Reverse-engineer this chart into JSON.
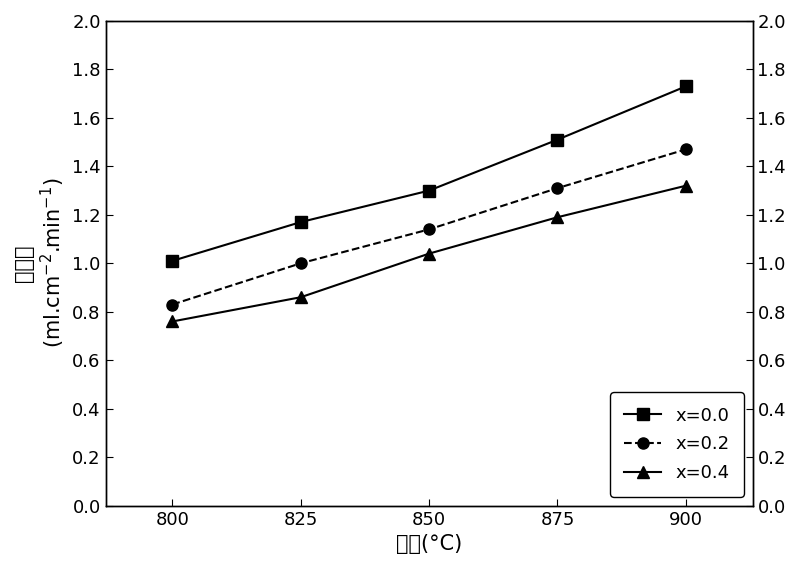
{
  "x": [
    800,
    825,
    850,
    875,
    900
  ],
  "series": [
    {
      "label": "x=0.0",
      "y": [
        1.01,
        1.17,
        1.3,
        1.51,
        1.73
      ],
      "marker": "s",
      "linestyle": "-",
      "color": "#000000"
    },
    {
      "label": "x=0.2",
      "y": [
        0.83,
        1.0,
        1.14,
        1.31,
        1.47
      ],
      "marker": "o",
      "linestyle": "--",
      "color": "#000000"
    },
    {
      "label": "x=0.4",
      "y": [
        0.76,
        0.86,
        1.04,
        1.19,
        1.32
      ],
      "marker": "^",
      "linestyle": "-",
      "color": "#000000"
    }
  ],
  "xlabel_ascii": "温度(°C)",
  "ylabel_chinese": "透氧率",
  "ylabel_ascii": "(ml.cm$^{-2}$.min$^{-1}$)",
  "xlim": [
    787,
    913
  ],
  "ylim": [
    0.0,
    2.0
  ],
  "xticks": [
    800,
    825,
    850,
    875,
    900
  ],
  "yticks": [
    0.0,
    0.2,
    0.4,
    0.6,
    0.8,
    1.0,
    1.2,
    1.4,
    1.6,
    1.8,
    2.0
  ],
  "legend_loc": "lower right",
  "background_color": "#ffffff",
  "marker_size": 8,
  "linewidth": 1.5
}
